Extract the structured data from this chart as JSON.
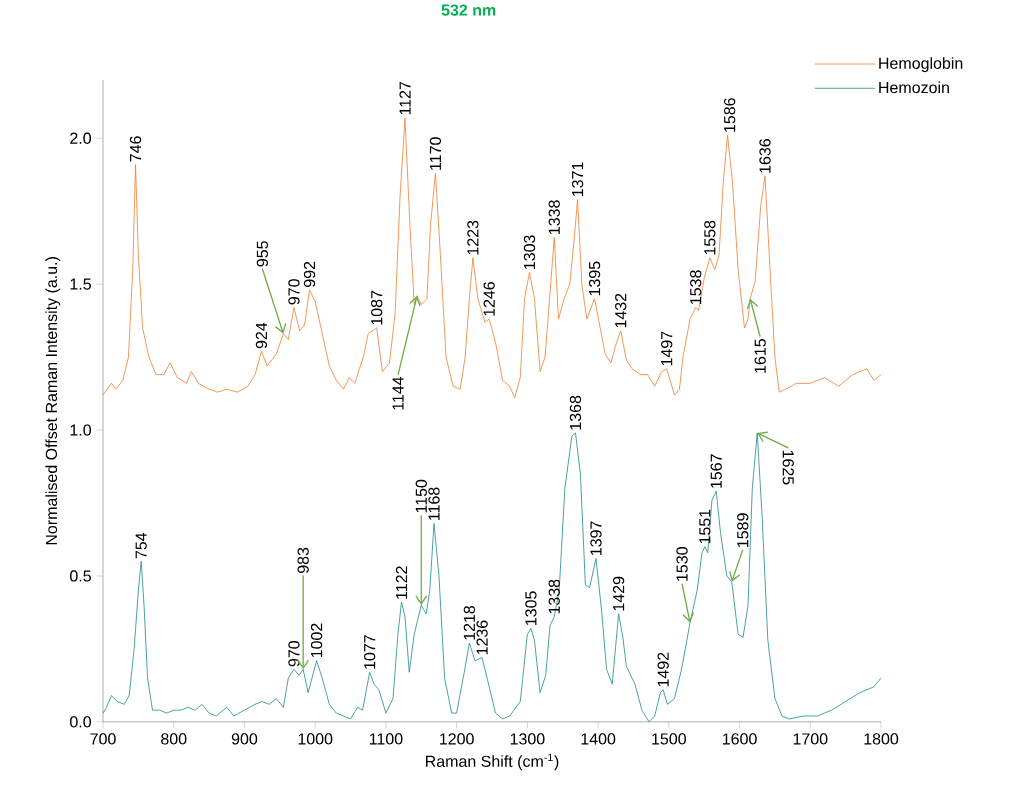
{
  "chart_data": {
    "type": "line",
    "title": "532 nm",
    "xlabel": "Raman Shift (cm$^{-1}$)",
    "ylabel": "Normalised Offset Raman Intensity (a.u.)",
    "xlim": [
      700,
      1800
    ],
    "ylim": [
      0,
      2.2
    ],
    "xticks": [
      700,
      800,
      900,
      1000,
      1100,
      1200,
      1300,
      1400,
      1500,
      1600,
      1700,
      1800
    ],
    "yticks": [
      {
        "value": 0,
        "label": "0.0"
      },
      {
        "value": 0.5,
        "label": "0.5"
      },
      {
        "value": 1,
        "label": "1.0"
      },
      {
        "value": 1.5,
        "label": "1.5"
      },
      {
        "value": 2,
        "label": "2.0"
      }
    ],
    "legend": "top right",
    "series": [
      {
        "name": "Hemoglobin",
        "color": "#ed7d31",
        "x": [
          700,
          712,
          718,
          728,
          736,
          742,
          746,
          750,
          756,
          765,
          775,
          786,
          795,
          805,
          818,
          825,
          835,
          850,
          862,
          875,
          890,
          905,
          915,
          924,
          932,
          945,
          955,
          962,
          970,
          978,
          985,
          992,
          1000,
          1010,
          1020,
          1030,
          1040,
          1048,
          1056,
          1068,
          1075,
          1087,
          1095,
          1105,
          1113,
          1120,
          1127,
          1134,
          1140,
          1144,
          1150,
          1158,
          1163,
          1170,
          1177,
          1185,
          1195,
          1205,
          1212,
          1218,
          1223,
          1230,
          1240,
          1246,
          1255,
          1265,
          1275,
          1282,
          1290,
          1296,
          1303,
          1310,
          1318,
          1325,
          1333,
          1338,
          1344,
          1352,
          1360,
          1366,
          1371,
          1377,
          1384,
          1395,
          1403,
          1410,
          1418,
          1426,
          1432,
          1440,
          1448,
          1460,
          1470,
          1480,
          1490,
          1497,
          1508,
          1515,
          1520,
          1530,
          1538,
          1542,
          1550,
          1558,
          1565,
          1571,
          1577,
          1583,
          1590,
          1598,
          1607,
          1612,
          1615,
          1622,
          1630,
          1636,
          1642,
          1650,
          1656,
          1665,
          1680,
          1700,
          1720,
          1740,
          1760,
          1780,
          1790,
          1800
        ],
        "values": [
          1.12,
          1.16,
          1.14,
          1.17,
          1.25,
          1.55,
          1.91,
          1.6,
          1.35,
          1.25,
          1.19,
          1.19,
          1.23,
          1.18,
          1.16,
          1.2,
          1.16,
          1.14,
          1.13,
          1.14,
          1.13,
          1.15,
          1.19,
          1.27,
          1.22,
          1.26,
          1.33,
          1.31,
          1.42,
          1.34,
          1.36,
          1.48,
          1.44,
          1.33,
          1.22,
          1.17,
          1.14,
          1.18,
          1.16,
          1.25,
          1.33,
          1.35,
          1.2,
          1.23,
          1.4,
          1.8,
          2.07,
          1.7,
          1.43,
          1.46,
          1.43,
          1.45,
          1.7,
          1.88,
          1.6,
          1.25,
          1.15,
          1.14,
          1.25,
          1.45,
          1.59,
          1.45,
          1.37,
          1.38,
          1.3,
          1.17,
          1.15,
          1.11,
          1.18,
          1.45,
          1.54,
          1.45,
          1.2,
          1.25,
          1.5,
          1.66,
          1.38,
          1.45,
          1.5,
          1.65,
          1.79,
          1.5,
          1.38,
          1.45,
          1.35,
          1.26,
          1.23,
          1.3,
          1.34,
          1.24,
          1.21,
          1.19,
          1.19,
          1.15,
          1.2,
          1.21,
          1.12,
          1.14,
          1.25,
          1.38,
          1.42,
          1.41,
          1.52,
          1.59,
          1.55,
          1.6,
          1.85,
          2.01,
          1.85,
          1.55,
          1.35,
          1.38,
          1.45,
          1.51,
          1.77,
          1.87,
          1.6,
          1.25,
          1.13,
          1.14,
          1.16,
          1.16,
          1.18,
          1.15,
          1.19,
          1.21,
          1.17,
          1.19
        ]
      },
      {
        "name": "Hemozoin",
        "color": "#1f8a8a",
        "x": [
          700,
          705,
          712,
          720,
          730,
          737,
          744,
          750,
          754,
          758,
          763,
          770,
          780,
          790,
          800,
          810,
          820,
          830,
          840,
          850,
          860,
          875,
          885,
          900,
          915,
          925,
          935,
          945,
          955,
          962,
          970,
          977,
          983,
          990,
          1002,
          1010,
          1020,
          1030,
          1040,
          1050,
          1060,
          1067,
          1077,
          1083,
          1090,
          1100,
          1110,
          1117,
          1122,
          1127,
          1133,
          1140,
          1150,
          1157,
          1162,
          1168,
          1175,
          1183,
          1193,
          1200,
          1210,
          1218,
          1226,
          1236,
          1243,
          1255,
          1265,
          1275,
          1290,
          1300,
          1305,
          1310,
          1318,
          1326,
          1332,
          1338,
          1345,
          1353,
          1363,
          1368,
          1375,
          1382,
          1388,
          1397,
          1405,
          1412,
          1420,
          1429,
          1435,
          1440,
          1452,
          1462,
          1472,
          1480,
          1488,
          1492,
          1498,
          1508,
          1518,
          1530,
          1540,
          1547,
          1551,
          1555,
          1561,
          1567,
          1573,
          1582,
          1589,
          1598,
          1605,
          1612,
          1618,
          1625,
          1632,
          1640,
          1650,
          1660,
          1670,
          1690,
          1710,
          1730,
          1750,
          1770,
          1790,
          1800
        ],
        "values": [
          0.03,
          0.05,
          0.09,
          0.07,
          0.06,
          0.09,
          0.25,
          0.45,
          0.55,
          0.4,
          0.15,
          0.04,
          0.04,
          0.03,
          0.04,
          0.04,
          0.05,
          0.04,
          0.06,
          0.03,
          0.02,
          0.05,
          0.02,
          0.04,
          0.06,
          0.07,
          0.06,
          0.08,
          0.05,
          0.15,
          0.18,
          0.16,
          0.18,
          0.1,
          0.21,
          0.15,
          0.06,
          0.03,
          0.02,
          0.01,
          0.05,
          0.04,
          0.17,
          0.13,
          0.11,
          0.03,
          0.08,
          0.3,
          0.41,
          0.36,
          0.17,
          0.3,
          0.4,
          0.37,
          0.45,
          0.68,
          0.5,
          0.15,
          0.03,
          0.03,
          0.16,
          0.27,
          0.21,
          0.22,
          0.15,
          0.03,
          0.01,
          0.02,
          0.07,
          0.3,
          0.32,
          0.28,
          0.1,
          0.16,
          0.33,
          0.36,
          0.45,
          0.8,
          0.98,
          0.99,
          0.85,
          0.47,
          0.46,
          0.56,
          0.38,
          0.18,
          0.13,
          0.37,
          0.29,
          0.19,
          0.13,
          0.04,
          0.0,
          0.02,
          0.1,
          0.11,
          0.06,
          0.08,
          0.18,
          0.34,
          0.45,
          0.58,
          0.6,
          0.58,
          0.76,
          0.79,
          0.65,
          0.5,
          0.48,
          0.3,
          0.29,
          0.4,
          0.8,
          0.99,
          0.7,
          0.28,
          0.08,
          0.02,
          0.01,
          0.02,
          0.02,
          0.04,
          0.07,
          0.1,
          0.12,
          0.15
        ]
      }
    ],
    "annotations": [
      {
        "text": "746",
        "x": 746,
        "y": 1.91
      },
      {
        "text": "924",
        "x": 924,
        "y": 1.27
      },
      {
        "text": "955",
        "x": 955,
        "y": 1.33
      },
      {
        "text": "970",
        "x": 970,
        "y": 1.42
      },
      {
        "text": "992",
        "x": 992,
        "y": 1.48
      },
      {
        "text": "1087",
        "x": 1087,
        "y": 1.35
      },
      {
        "text": "1144",
        "x": 1144,
        "y": 1.46
      },
      {
        "text": "1127",
        "x": 1127,
        "y": 2.07
      },
      {
        "text": "1170",
        "x": 1170,
        "y": 1.88
      },
      {
        "text": "1223",
        "x": 1223,
        "y": 1.59
      },
      {
        "text": "1246",
        "x": 1246,
        "y": 1.38
      },
      {
        "text": "1303",
        "x": 1303,
        "y": 1.54
      },
      {
        "text": "1338",
        "x": 1338,
        "y": 1.66
      },
      {
        "text": "1371",
        "x": 1371,
        "y": 1.79
      },
      {
        "text": "1395",
        "x": 1395,
        "y": 1.45
      },
      {
        "text": "1432",
        "x": 1432,
        "y": 1.34
      },
      {
        "text": "1497",
        "x": 1497,
        "y": 1.21
      },
      {
        "text": "1538",
        "x": 1538,
        "y": 1.42
      },
      {
        "text": "1558",
        "x": 1558,
        "y": 1.59
      },
      {
        "text": "1586",
        "x": 1586,
        "y": 2.01
      },
      {
        "text": "1615",
        "x": 1615,
        "y": 1.45
      },
      {
        "text": "1636",
        "x": 1636,
        "y": 1.87
      },
      {
        "text": "754",
        "x": 754,
        "y": 0.55
      },
      {
        "text": "970",
        "x": 970,
        "y": 0.18
      },
      {
        "text": "983",
        "x": 983,
        "y": 0.18
      },
      {
        "text": "1002",
        "x": 1002,
        "y": 0.21
      },
      {
        "text": "1077",
        "x": 1077,
        "y": 0.17
      },
      {
        "text": "1122",
        "x": 1122,
        "y": 0.41
      },
      {
        "text": "1150",
        "x": 1150,
        "y": 0.4
      },
      {
        "text": "1168",
        "x": 1168,
        "y": 0.68
      },
      {
        "text": "1218",
        "x": 1218,
        "y": 0.27
      },
      {
        "text": "1236",
        "x": 1236,
        "y": 0.22
      },
      {
        "text": "1305",
        "x": 1305,
        "y": 0.32
      },
      {
        "text": "1338",
        "x": 1338,
        "y": 0.36
      },
      {
        "text": "1368",
        "x": 1368,
        "y": 0.99
      },
      {
        "text": "1397",
        "x": 1397,
        "y": 0.56
      },
      {
        "text": "1429",
        "x": 1429,
        "y": 0.37
      },
      {
        "text": "1492",
        "x": 1492,
        "y": 0.11
      },
      {
        "text": "1530",
        "x": 1530,
        "y": 0.34
      },
      {
        "text": "1551",
        "x": 1551,
        "y": 0.6
      },
      {
        "text": "1567",
        "x": 1567,
        "y": 0.79
      },
      {
        "text": "1589",
        "x": 1589,
        "y": 0.48
      },
      {
        "text": "1625",
        "x": 1625,
        "y": 0.99
      }
    ]
  }
}
